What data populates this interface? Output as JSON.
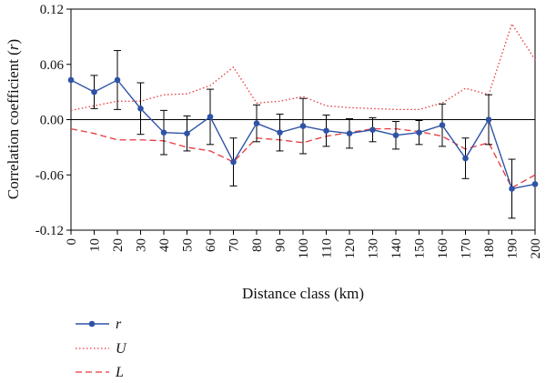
{
  "chart_data": {
    "type": "line",
    "xlabel": "Distance class (km)",
    "ylabel": "Correlation coefficient (r)",
    "ylabel_parts": {
      "prefix": "Correlation coefficient (",
      "var": "r",
      "suffix": ")"
    },
    "xlim": [
      0,
      200
    ],
    "ylim": [
      -0.12,
      0.12
    ],
    "x_ticks": [
      0,
      10,
      20,
      30,
      40,
      50,
      60,
      70,
      80,
      90,
      100,
      110,
      120,
      130,
      140,
      150,
      160,
      170,
      180,
      190,
      200
    ],
    "y_ticks": [
      -0.12,
      -0.06,
      0.0,
      0.06,
      0.12
    ],
    "y_tick_labels": [
      "-0.12",
      "-0.06",
      "0.00",
      "0.06",
      "0.12"
    ],
    "zero_line": true,
    "grid": false,
    "legend_position": "bottom-left",
    "x": [
      0,
      10,
      20,
      30,
      40,
      50,
      60,
      70,
      80,
      90,
      100,
      110,
      120,
      130,
      140,
      150,
      160,
      170,
      180,
      190,
      200
    ],
    "series": [
      {
        "name": "r",
        "style": "solid-markers",
        "color": "#2f53a6",
        "values": [
          0.043,
          0.03,
          0.043,
          0.012,
          -0.014,
          -0.015,
          0.003,
          -0.046,
          -0.004,
          -0.014,
          -0.007,
          -0.012,
          -0.015,
          -0.011,
          -0.017,
          -0.014,
          -0.006,
          -0.042,
          0.0,
          -0.075,
          -0.07
        ],
        "error": [
          0.0,
          0.018,
          0.032,
          0.028,
          0.024,
          0.019,
          0.03,
          0.026,
          0.02,
          0.02,
          0.03,
          0.017,
          0.016,
          0.013,
          0.015,
          0.013,
          0.023,
          0.022,
          0.027,
          0.032,
          0.0
        ]
      },
      {
        "name": "U",
        "style": "dotted",
        "color": "#e8383d",
        "values": [
          0.01,
          0.015,
          0.02,
          0.02,
          0.027,
          0.028,
          0.037,
          0.057,
          0.018,
          0.02,
          0.025,
          0.015,
          0.013,
          0.012,
          0.011,
          0.011,
          0.018,
          0.034,
          0.027,
          0.104,
          0.065
        ]
      },
      {
        "name": "L",
        "style": "dashed",
        "color": "#e8383d",
        "values": [
          -0.01,
          -0.015,
          -0.022,
          -0.022,
          -0.023,
          -0.03,
          -0.034,
          -0.046,
          -0.02,
          -0.022,
          -0.025,
          -0.018,
          -0.014,
          -0.01,
          -0.01,
          -0.013,
          -0.018,
          -0.032,
          -0.025,
          -0.074,
          -0.06
        ]
      }
    ]
  }
}
